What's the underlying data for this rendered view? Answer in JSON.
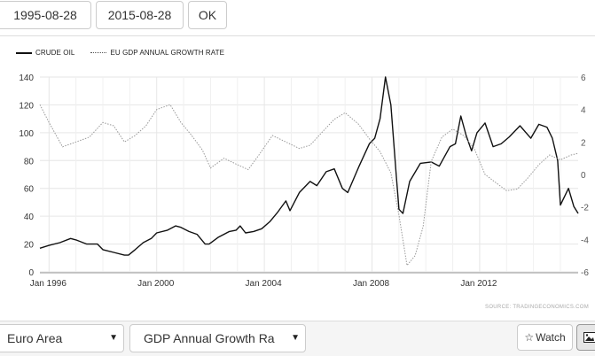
{
  "toolbar": {
    "start_date": "1995-08-28",
    "end_date": "2015-08-28",
    "ok_label": "OK"
  },
  "legend": {
    "series1": "CRUDE OIL",
    "series2": "EU GDP ANNUAL GROWTH RATE"
  },
  "source": "SOURCE: TRADINGECONOMICS.COM",
  "bottom": {
    "country": "Euro Area",
    "indicator": "GDP Annual Growth Ra",
    "watch_label": "Watch",
    "watch_icon": "star-icon",
    "image_icon": "image-icon"
  },
  "colors": {
    "crude": "#111111",
    "gdp": "#999999",
    "grid": "#e6e6e6"
  },
  "chart_data": {
    "type": "line",
    "x_ticks": [
      "Jan 1996",
      "Jan 2000",
      "Jan 2004",
      "Jan 2008",
      "Jan 2012"
    ],
    "y_left_ticks": [
      0,
      20,
      40,
      60,
      80,
      100,
      120,
      140
    ],
    "y_right_ticks": [
      -6,
      -4,
      -2,
      0,
      2,
      4,
      6
    ],
    "xlim": [
      1995.66,
      2015.66
    ],
    "ylim_left": [
      0,
      140
    ],
    "ylim_right": [
      -6,
      6
    ],
    "grid": true,
    "legend_position": "top-left",
    "series": [
      {
        "name": "CRUDE OIL",
        "axis": "left",
        "style": "solid",
        "x": [
          1995.66,
          1996.0,
          1996.4,
          1996.8,
          1997.0,
          1997.4,
          1997.8,
          1998.0,
          1998.4,
          1998.8,
          1998.95,
          1999.2,
          1999.5,
          1999.8,
          2000.0,
          2000.4,
          2000.7,
          2000.9,
          2001.2,
          2001.5,
          2001.8,
          2001.95,
          2002.3,
          2002.7,
          2002.95,
          2003.1,
          2003.3,
          2003.6,
          2003.9,
          2004.2,
          2004.5,
          2004.8,
          2004.95,
          2005.3,
          2005.7,
          2005.95,
          2006.3,
          2006.6,
          2006.9,
          2007.1,
          2007.5,
          2007.9,
          2008.1,
          2008.3,
          2008.5,
          2008.7,
          2008.9,
          2009.0,
          2009.15,
          2009.4,
          2009.8,
          2010.2,
          2010.5,
          2010.9,
          2011.1,
          2011.3,
          2011.5,
          2011.7,
          2011.9,
          2012.2,
          2012.5,
          2012.8,
          2013.1,
          2013.5,
          2013.9,
          2014.2,
          2014.5,
          2014.7,
          2014.9,
          2015.0,
          2015.3,
          2015.5,
          2015.66
        ],
        "values": [
          17,
          19,
          21,
          24,
          23,
          20,
          20,
          16,
          14,
          12,
          12,
          16,
          21,
          24,
          28,
          30,
          33,
          32,
          29,
          27,
          20,
          20,
          25,
          29,
          30,
          33,
          28,
          29,
          31,
          36,
          43,
          51,
          44,
          57,
          65,
          62,
          72,
          74,
          60,
          57,
          75,
          92,
          96,
          110,
          140,
          120,
          70,
          45,
          42,
          65,
          78,
          79,
          76,
          90,
          92,
          112,
          98,
          87,
          100,
          107,
          90,
          92,
          97,
          105,
          96,
          106,
          104,
          96,
          80,
          48,
          60,
          47,
          42
        ]
      },
      {
        "name": "EU GDP ANNUAL GROWTH RATE",
        "axis": "right",
        "style": "dotted",
        "x": [
          1995.66,
          1996.0,
          1996.5,
          1997.0,
          1997.5,
          1998.0,
          1998.4,
          1998.8,
          1999.2,
          1999.6,
          2000.0,
          2000.5,
          2000.9,
          2001.3,
          2001.7,
          2002.0,
          2002.5,
          2003.0,
          2003.4,
          2003.8,
          2004.3,
          2004.8,
          2005.3,
          2005.7,
          2006.2,
          2006.6,
          2007.0,
          2007.5,
          2007.9,
          2008.3,
          2008.7,
          2009.0,
          2009.3,
          2009.6,
          2009.9,
          2010.2,
          2010.6,
          2011.0,
          2011.4,
          2011.8,
          2012.2,
          2012.6,
          2013.0,
          2013.4,
          2013.8,
          2014.2,
          2014.6,
          2015.0,
          2015.4,
          2015.66
        ],
        "values": [
          4.3,
          3.2,
          1.7,
          2.0,
          2.3,
          3.2,
          3.0,
          2.0,
          2.4,
          3.0,
          4.0,
          4.3,
          3.2,
          2.4,
          1.5,
          0.4,
          1.0,
          0.6,
          0.3,
          1.2,
          2.4,
          2.0,
          1.6,
          1.8,
          2.7,
          3.4,
          3.8,
          3.1,
          2.2,
          1.4,
          0.1,
          -2.5,
          -5.6,
          -5.0,
          -3.2,
          0.8,
          2.3,
          2.8,
          2.4,
          1.6,
          0.0,
          -0.5,
          -1.0,
          -0.9,
          -0.2,
          0.6,
          1.2,
          0.9,
          1.2,
          1.3
        ]
      }
    ]
  }
}
